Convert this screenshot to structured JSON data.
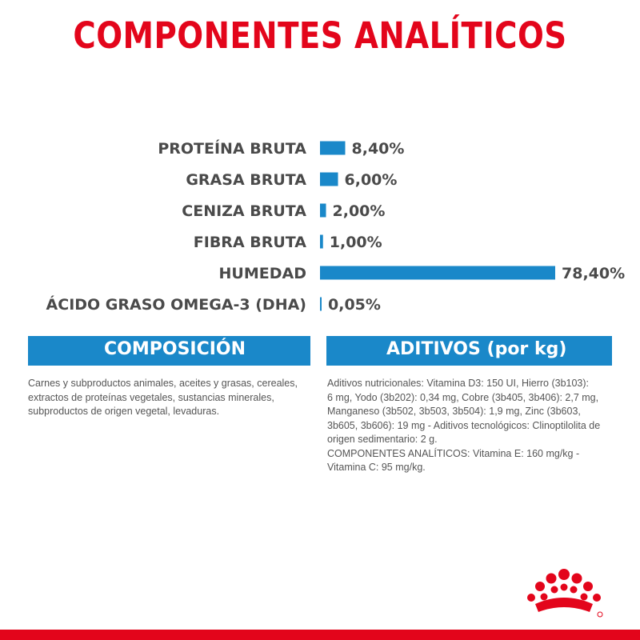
{
  "title": "COMPONENTES ANALÍTICOS",
  "chart_data": {
    "type": "bar",
    "orientation": "horizontal",
    "categories": [
      "PROTEÍNA BRUTA",
      "GRASA BRUTA",
      "CENIZA BRUTA",
      "FIBRA BRUTA",
      "HUMEDAD",
      "ÁCIDO GRASO OMEGA-3 (DHA)"
    ],
    "values": [
      8.4,
      6.0,
      2.0,
      1.0,
      78.4,
      0.05
    ],
    "value_labels": [
      "8,40%",
      "6,00%",
      "2,00%",
      "1,00%",
      "78,40%",
      "0,05%"
    ],
    "bar_color": "#1a88c9",
    "xlim": [
      0,
      78.4
    ],
    "grid": false,
    "legend": "none"
  },
  "composicion": {
    "heading": "COMPOSICIÓN",
    "lines": [
      "Carnes y subproductos animales, aceites y grasas, cereales,",
      "extractos de proteínas vegetales, sustancias minerales,",
      "subproductos de origen vegetal, levaduras."
    ]
  },
  "aditivos": {
    "heading": "ADITIVOS (por kg)",
    "lines": [
      "Aditivos nutricionales: Vitamina D3: 150 UI, Hierro (3b103):",
      "6 mg, Yodo (3b202): 0,34 mg, Cobre (3b405, 3b406): 2,7 mg,",
      "Manganeso (3b502, 3b503, 3b504): 1,9 mg, Zinc (3b603,",
      "3b605, 3b606): 19 mg - Aditivos tecnológicos: Clinoptilolita de",
      "origen sedimentario: 2 g.",
      "COMPONENTES ANALÍTICOS: Vitamina E: 160 mg/kg -",
      "Vitamina C: 95 mg/kg."
    ]
  },
  "colors": {
    "brand_red": "#e3051b",
    "bar_blue": "#1a88c9",
    "text_gray": "#4a4a4a"
  },
  "logo": {
    "icon": "royal-canin-crown-icon"
  }
}
